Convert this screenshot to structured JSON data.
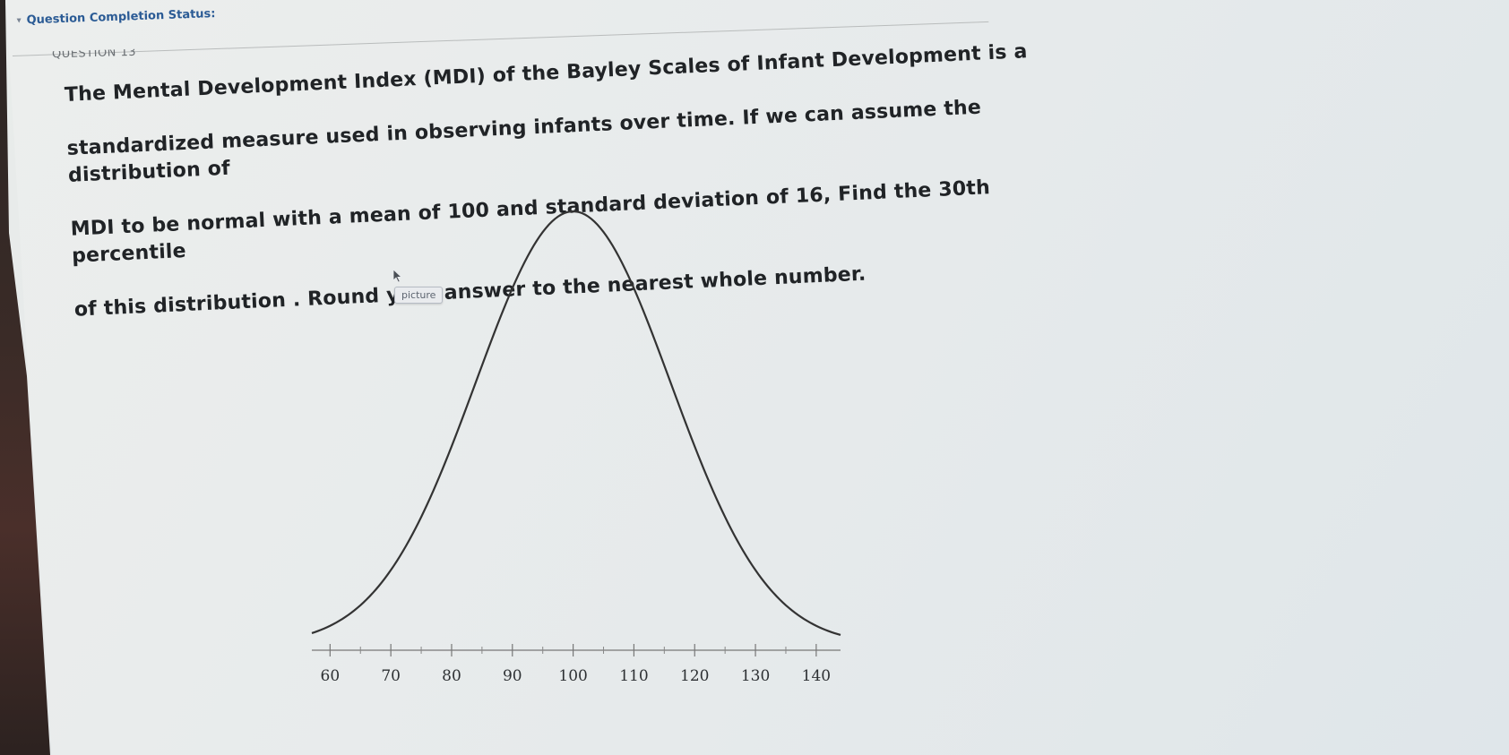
{
  "status": {
    "label": "Question Completion Status:"
  },
  "question": {
    "number_label": "QUESTION 13",
    "lines": [
      "The Mental Development Index (MDI) of the Bayley Scales of Infant Development is a",
      "standardized measure used in observing infants over time. If we can assume the distribution of",
      "MDI to be normal with a mean of 100 and standard deviation of 16, Find the 30th percentile",
      "of this distribution  .  Round your answer to the nearest whole number."
    ]
  },
  "figure": {
    "tooltip": "picture",
    "icons": {
      "toggle": "chevron-down-icon",
      "pointer": "mouse-cursor-icon"
    },
    "curve_color": "#333333"
  },
  "chart_data": {
    "type": "line",
    "title": "",
    "xlabel": "",
    "ylabel": "",
    "distribution": "normal",
    "mean": 100,
    "sd": 16,
    "xlim": [
      57,
      144
    ],
    "major_ticks": [
      60,
      70,
      80,
      90,
      100,
      110,
      120,
      130,
      140
    ],
    "minor_ticks": [
      65,
      75,
      85,
      95,
      105,
      115,
      125,
      135
    ],
    "tick_labels": [
      "60",
      "70",
      "80",
      "90",
      "100",
      "110",
      "120",
      "130",
      "140"
    ],
    "grid": false
  }
}
